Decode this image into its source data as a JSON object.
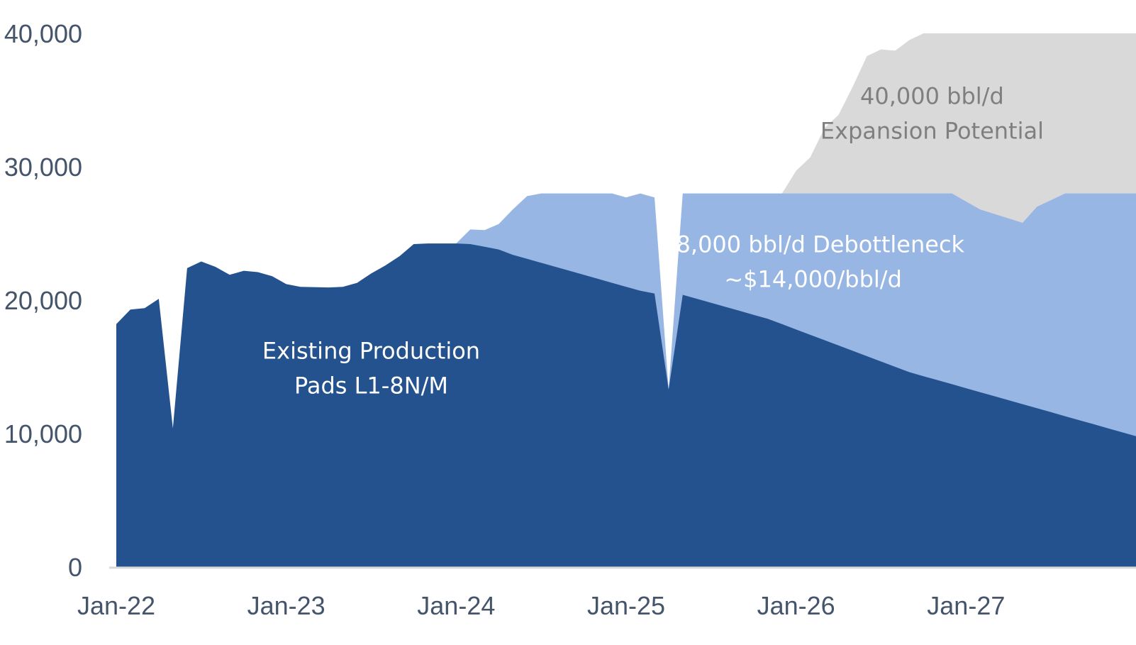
{
  "chart_data": {
    "type": "area",
    "stacked": true,
    "ylim": [
      0,
      40000
    ],
    "grid": false,
    "legend": "none",
    "y_ticks": [
      {
        "value": 0,
        "label": "0"
      },
      {
        "value": 10000,
        "label": "10,000"
      },
      {
        "value": 20000,
        "label": "20,000"
      },
      {
        "value": 30000,
        "label": "30,000"
      },
      {
        "value": 40000,
        "label": "40,000"
      }
    ],
    "x_ticks": [
      "Jan-22",
      "Jan-23",
      "Jan-24",
      "Jan-25",
      "Jan-26",
      "Jan-27"
    ],
    "x_range_years": [
      2022.0,
      2028.0
    ],
    "series": [
      {
        "name": "Existing Production",
        "color": "#24528f",
        "label_lines": [
          "Existing Production",
          "Pads L1-8N/M"
        ],
        "label_pos": {
          "x": 2023.5,
          "y": 15600
        },
        "points": [
          [
            2022.0,
            18200
          ],
          [
            2022.083,
            19300
          ],
          [
            2022.167,
            19400
          ],
          [
            2022.25,
            20100
          ],
          [
            2022.333,
            10400
          ],
          [
            2022.417,
            22400
          ],
          [
            2022.5,
            22900
          ],
          [
            2022.583,
            22500
          ],
          [
            2022.667,
            21900
          ],
          [
            2022.75,
            22200
          ],
          [
            2022.833,
            22100
          ],
          [
            2022.917,
            21800
          ],
          [
            2023.0,
            21200
          ],
          [
            2023.083,
            21000
          ],
          [
            2023.25,
            20950
          ],
          [
            2023.333,
            21000
          ],
          [
            2023.417,
            21300
          ],
          [
            2023.5,
            22000
          ],
          [
            2023.583,
            22600
          ],
          [
            2023.667,
            23300
          ],
          [
            2023.75,
            24200
          ],
          [
            2023.833,
            24250
          ],
          [
            2024.0,
            24250
          ],
          [
            2024.083,
            24200
          ],
          [
            2024.167,
            24000
          ],
          [
            2024.25,
            23800
          ],
          [
            2024.333,
            23400
          ],
          [
            2024.417,
            23100
          ],
          [
            2024.5,
            22800
          ],
          [
            2024.583,
            22500
          ],
          [
            2024.667,
            22200
          ],
          [
            2024.75,
            21900
          ],
          [
            2024.833,
            21600
          ],
          [
            2024.917,
            21300
          ],
          [
            2025.0,
            21000
          ],
          [
            2025.083,
            20700
          ],
          [
            2025.167,
            20500
          ],
          [
            2025.25,
            13300
          ],
          [
            2025.333,
            20400
          ],
          [
            2025.417,
            20100
          ],
          [
            2025.5,
            19800
          ],
          [
            2025.583,
            19500
          ],
          [
            2025.667,
            19200
          ],
          [
            2025.75,
            18900
          ],
          [
            2025.833,
            18600
          ],
          [
            2025.917,
            18200
          ],
          [
            2026.0,
            17800
          ],
          [
            2026.083,
            17400
          ],
          [
            2026.167,
            17000
          ],
          [
            2026.25,
            16600
          ],
          [
            2026.333,
            16200
          ],
          [
            2026.417,
            15800
          ],
          [
            2026.5,
            15400
          ],
          [
            2026.583,
            15000
          ],
          [
            2026.667,
            14600
          ],
          [
            2026.75,
            14300
          ],
          [
            2026.833,
            14000
          ],
          [
            2026.917,
            13700
          ],
          [
            2027.0,
            13400
          ],
          [
            2027.083,
            13100
          ],
          [
            2027.167,
            12800
          ],
          [
            2027.25,
            12500
          ],
          [
            2027.333,
            12200
          ],
          [
            2027.417,
            11900
          ],
          [
            2027.5,
            11600
          ],
          [
            2027.583,
            11300
          ],
          [
            2027.667,
            11000
          ],
          [
            2027.75,
            10700
          ],
          [
            2027.833,
            10400
          ],
          [
            2027.917,
            10100
          ],
          [
            2028.0,
            9800
          ]
        ]
      },
      {
        "name": "28,000 bbl/d Debottleneck",
        "color": "#97b6e4",
        "label_lines": [
          "28,000 bbl/d Debottleneck",
          "~$14,000/bbl/d"
        ],
        "label_pos": {
          "x": 2026.1,
          "y": 23600
        },
        "points": [
          [
            2024.0,
            24250
          ],
          [
            2024.083,
            25300
          ],
          [
            2024.167,
            25250
          ],
          [
            2024.25,
            25700
          ],
          [
            2024.333,
            26800
          ],
          [
            2024.417,
            27800
          ],
          [
            2024.5,
            28000
          ],
          [
            2024.917,
            28000
          ],
          [
            2025.0,
            27700
          ],
          [
            2025.083,
            28000
          ],
          [
            2025.167,
            27700
          ],
          [
            2025.25,
            13300
          ],
          [
            2025.333,
            28000
          ],
          [
            2026.917,
            28000
          ],
          [
            2027.083,
            26800
          ],
          [
            2027.333,
            25800
          ],
          [
            2027.417,
            27000
          ],
          [
            2027.583,
            28000
          ],
          [
            2028.0,
            28000
          ]
        ]
      },
      {
        "name": "40,000 bbl/d Expansion Potential",
        "color": "#d9d9d9",
        "label_lines": [
          "40,000 bbl/d",
          "Expansion Potential"
        ],
        "label_pos": {
          "x": 2026.8,
          "y": 34700
        },
        "points": [
          [
            2025.917,
            28000
          ],
          [
            2026.0,
            29700
          ],
          [
            2026.083,
            30700
          ],
          [
            2026.167,
            32900
          ],
          [
            2026.25,
            33900
          ],
          [
            2026.333,
            36000
          ],
          [
            2026.417,
            38300
          ],
          [
            2026.5,
            38800
          ],
          [
            2026.583,
            38700
          ],
          [
            2026.667,
            39500
          ],
          [
            2026.75,
            40000
          ],
          [
            2028.0,
            40000
          ]
        ]
      }
    ]
  }
}
